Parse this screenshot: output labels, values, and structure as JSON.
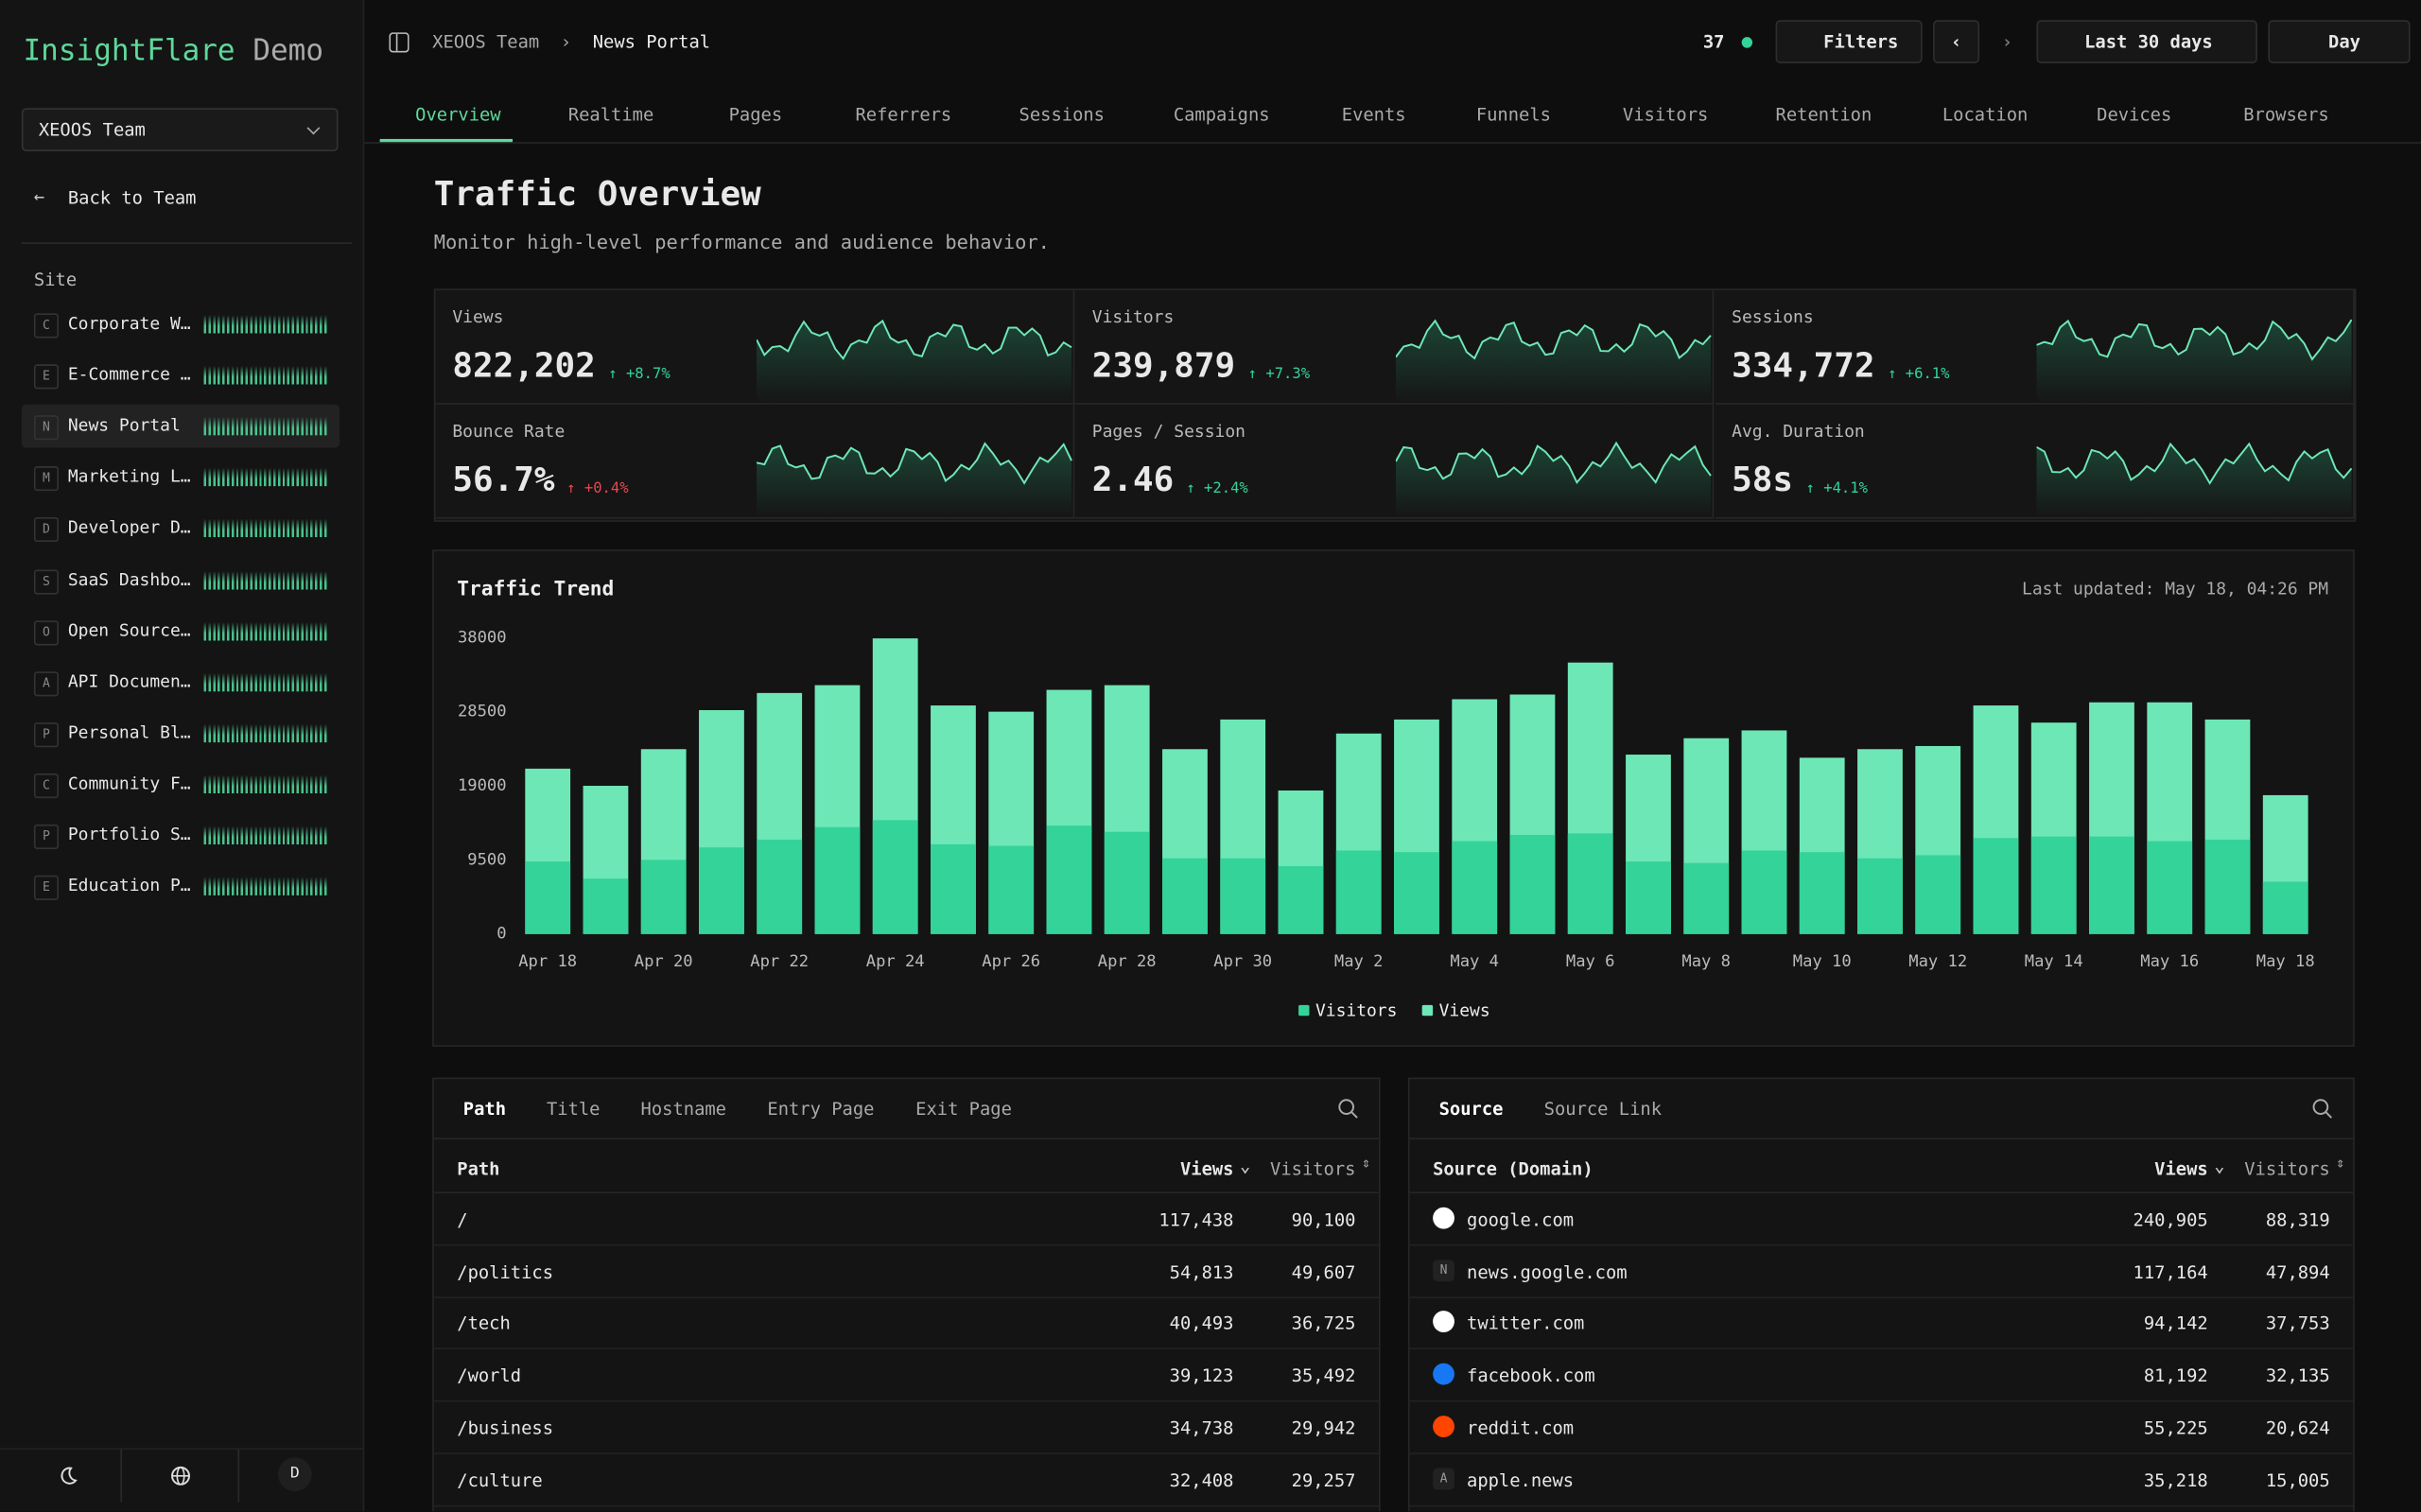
{
  "sidebar": {
    "brand": "InsightFlare",
    "brand_suffix": "Demo",
    "team": "XEOOS Team",
    "back": "Back to Team",
    "section": "Site",
    "sites": [
      {
        "initial": "C",
        "name": "Corporate W…"
      },
      {
        "initial": "E",
        "name": "E-Commerce …"
      },
      {
        "initial": "N",
        "name": "News Portal",
        "active": true
      },
      {
        "initial": "M",
        "name": "Marketing L…"
      },
      {
        "initial": "D",
        "name": "Developer D…"
      },
      {
        "initial": "S",
        "name": "SaaS Dashbo…"
      },
      {
        "initial": "O",
        "name": "Open Source…"
      },
      {
        "initial": "A",
        "name": "API Documen…"
      },
      {
        "initial": "P",
        "name": "Personal Bl…"
      },
      {
        "initial": "C",
        "name": "Community F…"
      },
      {
        "initial": "P",
        "name": "Portfolio S…"
      },
      {
        "initial": "E",
        "name": "Education P…"
      }
    ],
    "avatar": "D"
  },
  "topbar": {
    "breadcrumb": [
      "XEOOS Team",
      "News Portal"
    ],
    "online": "37",
    "filters": "Filters",
    "range": "Last 30 days",
    "interval": "Day"
  },
  "tabs": [
    "Overview",
    "Realtime",
    "Pages",
    "Referrers",
    "Sessions",
    "Campaigns",
    "Events",
    "Funnels",
    "Visitors",
    "Retention",
    "Location",
    "Devices",
    "Browsers"
  ],
  "header": {
    "title": "Traffic Overview",
    "subtitle": "Monitor high-level performance and audience behavior."
  },
  "kpis": [
    {
      "label": "Views",
      "value": "822,202",
      "change": "+8.7%",
      "change_color": "#34d399"
    },
    {
      "label": "Visitors",
      "value": "239,879",
      "change": "+7.3%",
      "change_color": "#34d399"
    },
    {
      "label": "Sessions",
      "value": "334,772",
      "change": "+6.1%",
      "change_color": "#34d399"
    },
    {
      "label": "Bounce Rate",
      "value": "56.7%",
      "change": "+0.4%",
      "change_color": "#e5484d"
    },
    {
      "label": "Pages / Session",
      "value": "2.46",
      "change": "+2.4%",
      "change_color": "#34d399"
    },
    {
      "label": "Avg. Duration",
      "value": "58s",
      "change": "+4.1%",
      "change_color": "#34d399"
    }
  ],
  "chart_data": {
    "type": "bar",
    "title": "Traffic Trend",
    "subtitle": "Last updated: May 18, 04:26 PM",
    "categories": [
      "Apr 18",
      null,
      "Apr 20",
      null,
      "Apr 22",
      null,
      "Apr 24",
      null,
      "Apr 26",
      null,
      "Apr 28",
      null,
      "Apr 30",
      null,
      "May 2",
      null,
      "May 4",
      null,
      "May 6",
      null,
      "May 8",
      null,
      "May 10",
      null,
      "May 12",
      null,
      "May 14",
      null,
      "May 16",
      null,
      "May 18"
    ],
    "series": [
      {
        "name": "Visitors",
        "color": "#34d399",
        "values": [
          9300,
          7100,
          9500,
          11100,
          12100,
          13700,
          14600,
          11500,
          11300,
          13900,
          13100,
          9700,
          9700,
          8700,
          10700,
          10500,
          11900,
          12700,
          12900,
          9300,
          9100,
          10700,
          10500,
          9700,
          10100,
          12300,
          12500,
          12500,
          11900,
          12100,
          6700
        ]
      },
      {
        "name": "Views",
        "color": "#6ee7b7",
        "values": [
          21200,
          19000,
          23700,
          28700,
          30900,
          31900,
          37900,
          29300,
          28500,
          31300,
          31900,
          23700,
          27500,
          18400,
          25700,
          27500,
          30100,
          30700,
          34800,
          23000,
          25100,
          26100,
          22600,
          23700,
          24100,
          29300,
          27100,
          29700,
          29700,
          27500,
          17800
        ]
      }
    ],
    "ylim": [
      0,
      38000
    ],
    "yticks": [
      0,
      9500,
      19000,
      28500,
      38000
    ],
    "grid": false,
    "legend": "bottom"
  },
  "tables": [
    {
      "tabs": [
        "Path",
        "Title",
        "Hostname",
        "Entry Page",
        "Exit Page"
      ],
      "columns": [
        "Path",
        "Views",
        "Visitors"
      ],
      "rows": [
        [
          "/",
          "117,438",
          "90,100"
        ],
        [
          "/politics",
          "54,813",
          "49,607"
        ],
        [
          "/tech",
          "40,493",
          "36,725"
        ],
        [
          "/world",
          "39,123",
          "35,492"
        ],
        [
          "/business",
          "34,738",
          "29,942"
        ],
        [
          "/culture",
          "32,408",
          "29,257"
        ]
      ]
    },
    {
      "tabs": [
        "Source",
        "Source Link"
      ],
      "columns": [
        "Source (Domain)",
        "Views",
        "Visitors"
      ],
      "icons": [
        null,
        "N",
        null,
        null,
        null,
        "A"
      ],
      "rows": [
        [
          "google.com",
          "240,905",
          "88,319"
        ],
        [
          "news.google.com",
          "117,164",
          "47,894"
        ],
        [
          "twitter.com",
          "94,142",
          "37,753"
        ],
        [
          "facebook.com",
          "81,192",
          "32,135"
        ],
        [
          "reddit.com",
          "55,225",
          "20,624"
        ],
        [
          "apple.news",
          "35,218",
          "15,005"
        ]
      ]
    }
  ]
}
